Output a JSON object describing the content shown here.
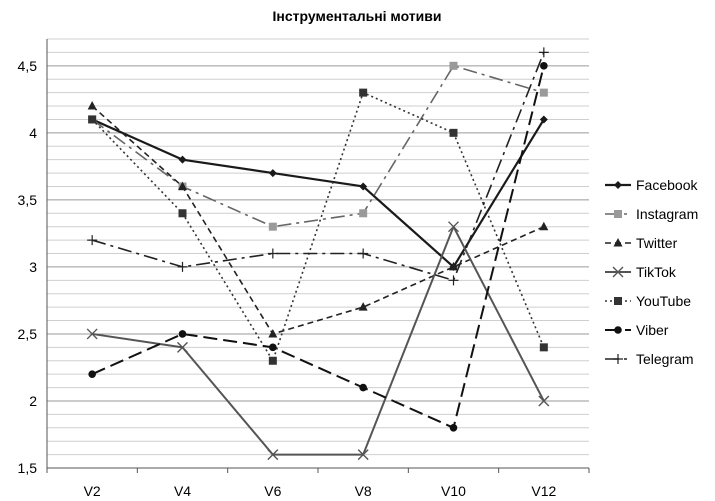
{
  "chart_data": {
    "type": "line",
    "title": "Інструментальні мотиви",
    "xlabel": "",
    "ylabel": "",
    "categories": [
      "V2",
      "V4",
      "V6",
      "V8",
      "V10",
      "V12"
    ],
    "ylim": [
      1.5,
      4.7
    ],
    "yticks": [
      "1,5",
      "2",
      "2,5",
      "3",
      "3,5",
      "4",
      "4,5"
    ],
    "grid": true,
    "legend_position": "right",
    "series": [
      {
        "name": "Facebook",
        "values": [
          4.1,
          3.8,
          3.7,
          3.6,
          3.0,
          4.1
        ],
        "color": "#1a1a1a",
        "dash": "",
        "width": 2.2,
        "marker": "diamond"
      },
      {
        "name": "Instagram",
        "values": [
          4.1,
          3.6,
          3.3,
          3.4,
          4.5,
          4.3
        ],
        "color": "#666666",
        "dash": "14,5,3,5",
        "width": 1.6,
        "marker": "square-light"
      },
      {
        "name": "Twitter",
        "values": [
          4.2,
          3.6,
          2.5,
          2.7,
          3.0,
          3.3
        ],
        "color": "#222222",
        "dash": "6,4",
        "width": 1.6,
        "marker": "triangle"
      },
      {
        "name": "TikTok",
        "values": [
          2.5,
          2.4,
          1.6,
          1.6,
          3.3,
          2.0
        ],
        "color": "#555555",
        "dash": "",
        "width": 2,
        "marker": "x"
      },
      {
        "name": "YouTube",
        "values": [
          4.1,
          3.4,
          2.3,
          4.3,
          4.0,
          2.4
        ],
        "color": "#333333",
        "dash": "2,3",
        "width": 1.6,
        "marker": "square"
      },
      {
        "name": "Viber",
        "values": [
          2.2,
          2.5,
          2.4,
          2.1,
          1.8,
          4.5
        ],
        "color": "#111111",
        "dash": "14,6",
        "width": 2,
        "marker": "circle"
      },
      {
        "name": "Telegram",
        "values": [
          3.2,
          3.0,
          3.1,
          3.1,
          2.9,
          4.6
        ],
        "color": "#222222",
        "dash": "14,5,3,5",
        "width": 1.6,
        "marker": "plus"
      }
    ]
  }
}
